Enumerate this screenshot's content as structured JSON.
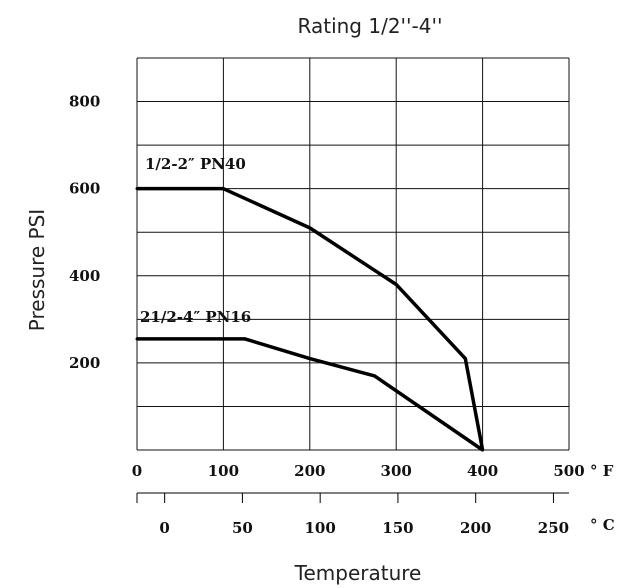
{
  "chart_data": {
    "type": "line",
    "title": "Rating 1/2''-4''",
    "xlabel": "Temperature",
    "ylabel": "Pressure PSI",
    "grid": true,
    "x_unit": "° F",
    "x2_unit": "° C",
    "xlim": [
      0,
      500
    ],
    "ylim": [
      0,
      900
    ],
    "x_ticks": [
      "0",
      "100",
      "200",
      "300",
      "400",
      "500"
    ],
    "x2_ticks": [
      "0",
      "50",
      "100",
      "150",
      "200",
      "250"
    ],
    "y_ticks": [
      "200",
      "400",
      "600",
      "800"
    ],
    "series": [
      {
        "name": "1/2-2″ PN40",
        "x": [
          0,
          100,
          200,
          300,
          380,
          400
        ],
        "y": [
          600,
          600,
          510,
          380,
          210,
          0
        ]
      },
      {
        "name": "21/2-4″ PN16",
        "x": [
          0,
          125,
          200,
          275,
          400
        ],
        "y": [
          255,
          255,
          210,
          170,
          0
        ]
      }
    ]
  }
}
